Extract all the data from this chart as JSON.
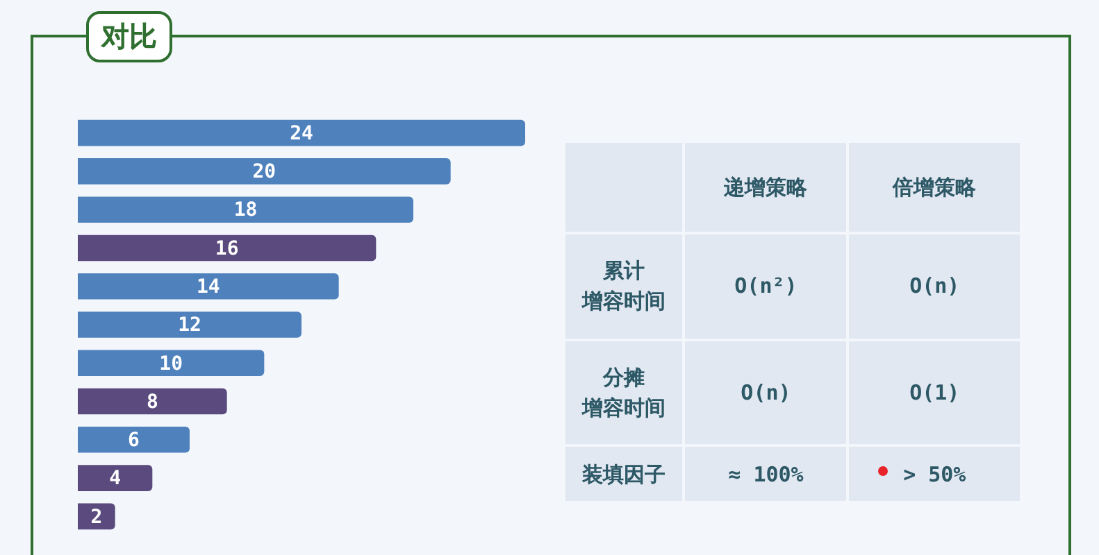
{
  "chart_data": [
    {
      "type": "bar",
      "title": "对比",
      "orientation": "horizontal",
      "categories": [
        null,
        null,
        null,
        null,
        null,
        null,
        null,
        null,
        null,
        null,
        null
      ],
      "values": [
        24,
        20,
        18,
        16,
        14,
        12,
        10,
        8,
        6,
        4,
        2
      ],
      "colors": [
        "#4f81bd",
        "#4f81bd",
        "#4f81bd",
        "#5b4a7d",
        "#4f81bd",
        "#4f81bd",
        "#4f81bd",
        "#5b4a7d",
        "#4f81bd",
        "#5b4a7d",
        "#5b4a7d"
      ],
      "data_labels": true,
      "tick_labels": false
    },
    {
      "type": "other",
      "categories": [
        "递增策略",
        "倍增策略"
      ],
      "y_categories": [
        "累计增容时间",
        "分摊增容时间",
        "装填因子"
      ],
      "cell_labels": [
        [
          "O(n²)",
          "O(n)"
        ],
        [
          "O(n)",
          "O(1)"
        ],
        [
          "≈ 100%",
          "> 50%"
        ]
      ]
    }
  ]
}
